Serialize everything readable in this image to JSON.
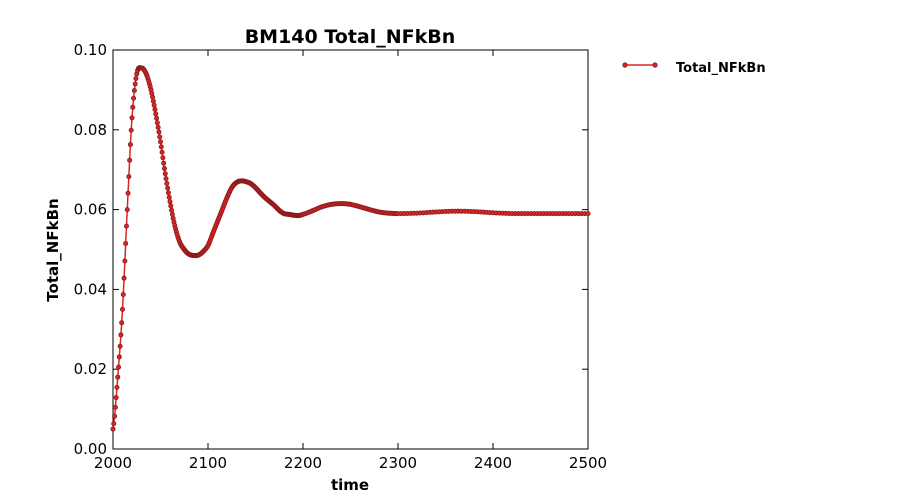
{
  "chart_data": {
    "type": "line",
    "title": "BM140 Total_NFkBn",
    "xlabel": "time",
    "ylabel": "Total_NFkBn",
    "xlim": [
      2000,
      2500
    ],
    "ylim": [
      0.0,
      0.1
    ],
    "xticks": [
      "2000",
      "2100",
      "2200",
      "2300",
      "2400",
      "2500"
    ],
    "yticks": [
      "0.00",
      "0.02",
      "0.04",
      "0.06",
      "0.08",
      "0.10"
    ],
    "grid": false,
    "legend_position": "outside-top-right",
    "series": [
      {
        "name": "Total_NFkBn",
        "color": "#d62728",
        "marker_color": "#8b1a1a",
        "x": [
          2000,
          2005,
          2010,
          2015,
          2020,
          2025,
          2030,
          2035,
          2040,
          2045,
          2050,
          2055,
          2060,
          2065,
          2070,
          2075,
          2080,
          2085,
          2090,
          2095,
          2100,
          2105,
          2110,
          2115,
          2120,
          2125,
          2130,
          2135,
          2140,
          2145,
          2150,
          2155,
          2160,
          2165,
          2170,
          2175,
          2180,
          2185,
          2190,
          2195,
          2200,
          2210,
          2220,
          2230,
          2240,
          2250,
          2260,
          2270,
          2280,
          2290,
          2300,
          2320,
          2340,
          2360,
          2380,
          2400,
          2420,
          2440,
          2460,
          2480,
          2500
        ],
        "values": [
          0.005,
          0.018,
          0.035,
          0.06,
          0.083,
          0.094,
          0.0955,
          0.094,
          0.09,
          0.084,
          0.077,
          0.069,
          0.062,
          0.056,
          0.052,
          0.05,
          0.0488,
          0.0485,
          0.0486,
          0.0495,
          0.051,
          0.054,
          0.057,
          0.06,
          0.063,
          0.0655,
          0.0668,
          0.0672,
          0.067,
          0.0665,
          0.0655,
          0.0642,
          0.063,
          0.062,
          0.061,
          0.0598,
          0.059,
          0.0588,
          0.0586,
          0.0585,
          0.0588,
          0.0597,
          0.0607,
          0.0613,
          0.0615,
          0.0613,
          0.0607,
          0.06,
          0.0594,
          0.0591,
          0.059,
          0.0591,
          0.0594,
          0.0596,
          0.0595,
          0.0592,
          0.059,
          0.059,
          0.059,
          0.059,
          0.059
        ]
      }
    ]
  }
}
